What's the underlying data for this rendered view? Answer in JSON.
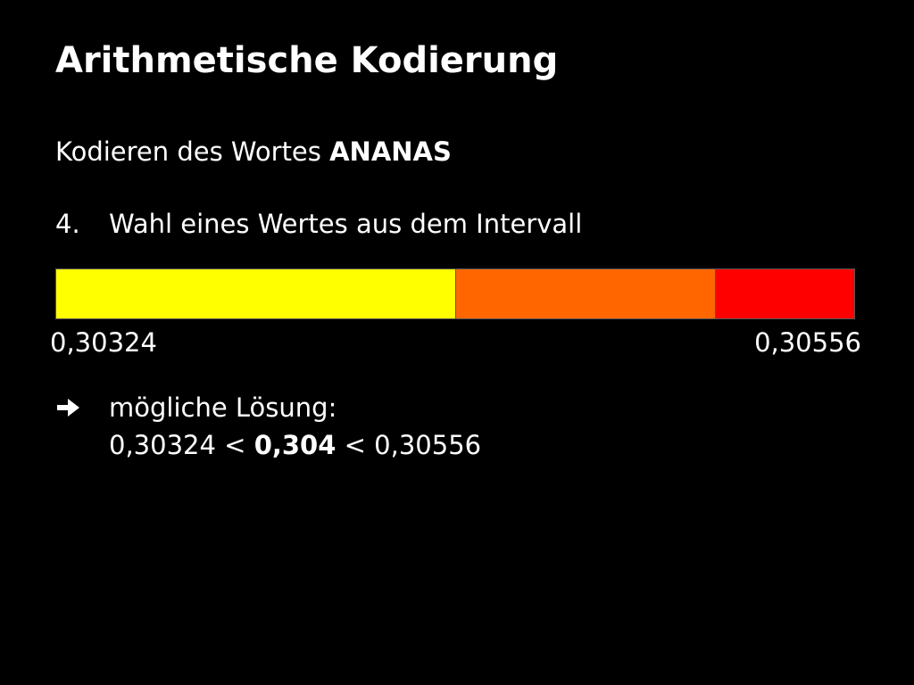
{
  "slide": {
    "title": "Arithmetische Kodierung",
    "subtitle": {
      "prefix": "Kodieren des Wortes ",
      "word": "ANANAS"
    },
    "step": {
      "number": "4.",
      "text": "Wahl eines Wertes aus dem Intervall"
    },
    "interval_bar": {
      "segments": [
        {
          "color": "#FFFF00",
          "share": 0.5
        },
        {
          "color": "#FF6600",
          "share": 0.325
        },
        {
          "color": "#FF0000",
          "share": 0.175
        }
      ],
      "lower_bound": "0,30324",
      "upper_bound": "0,30556"
    },
    "conclusion": {
      "icon": "right-arrow-icon",
      "label": "mögliche Lösung:",
      "lower": "0,30324",
      "lt1": " < ",
      "chosen": "0,304",
      "lt2": " < ",
      "upper": "0,30556"
    }
  }
}
